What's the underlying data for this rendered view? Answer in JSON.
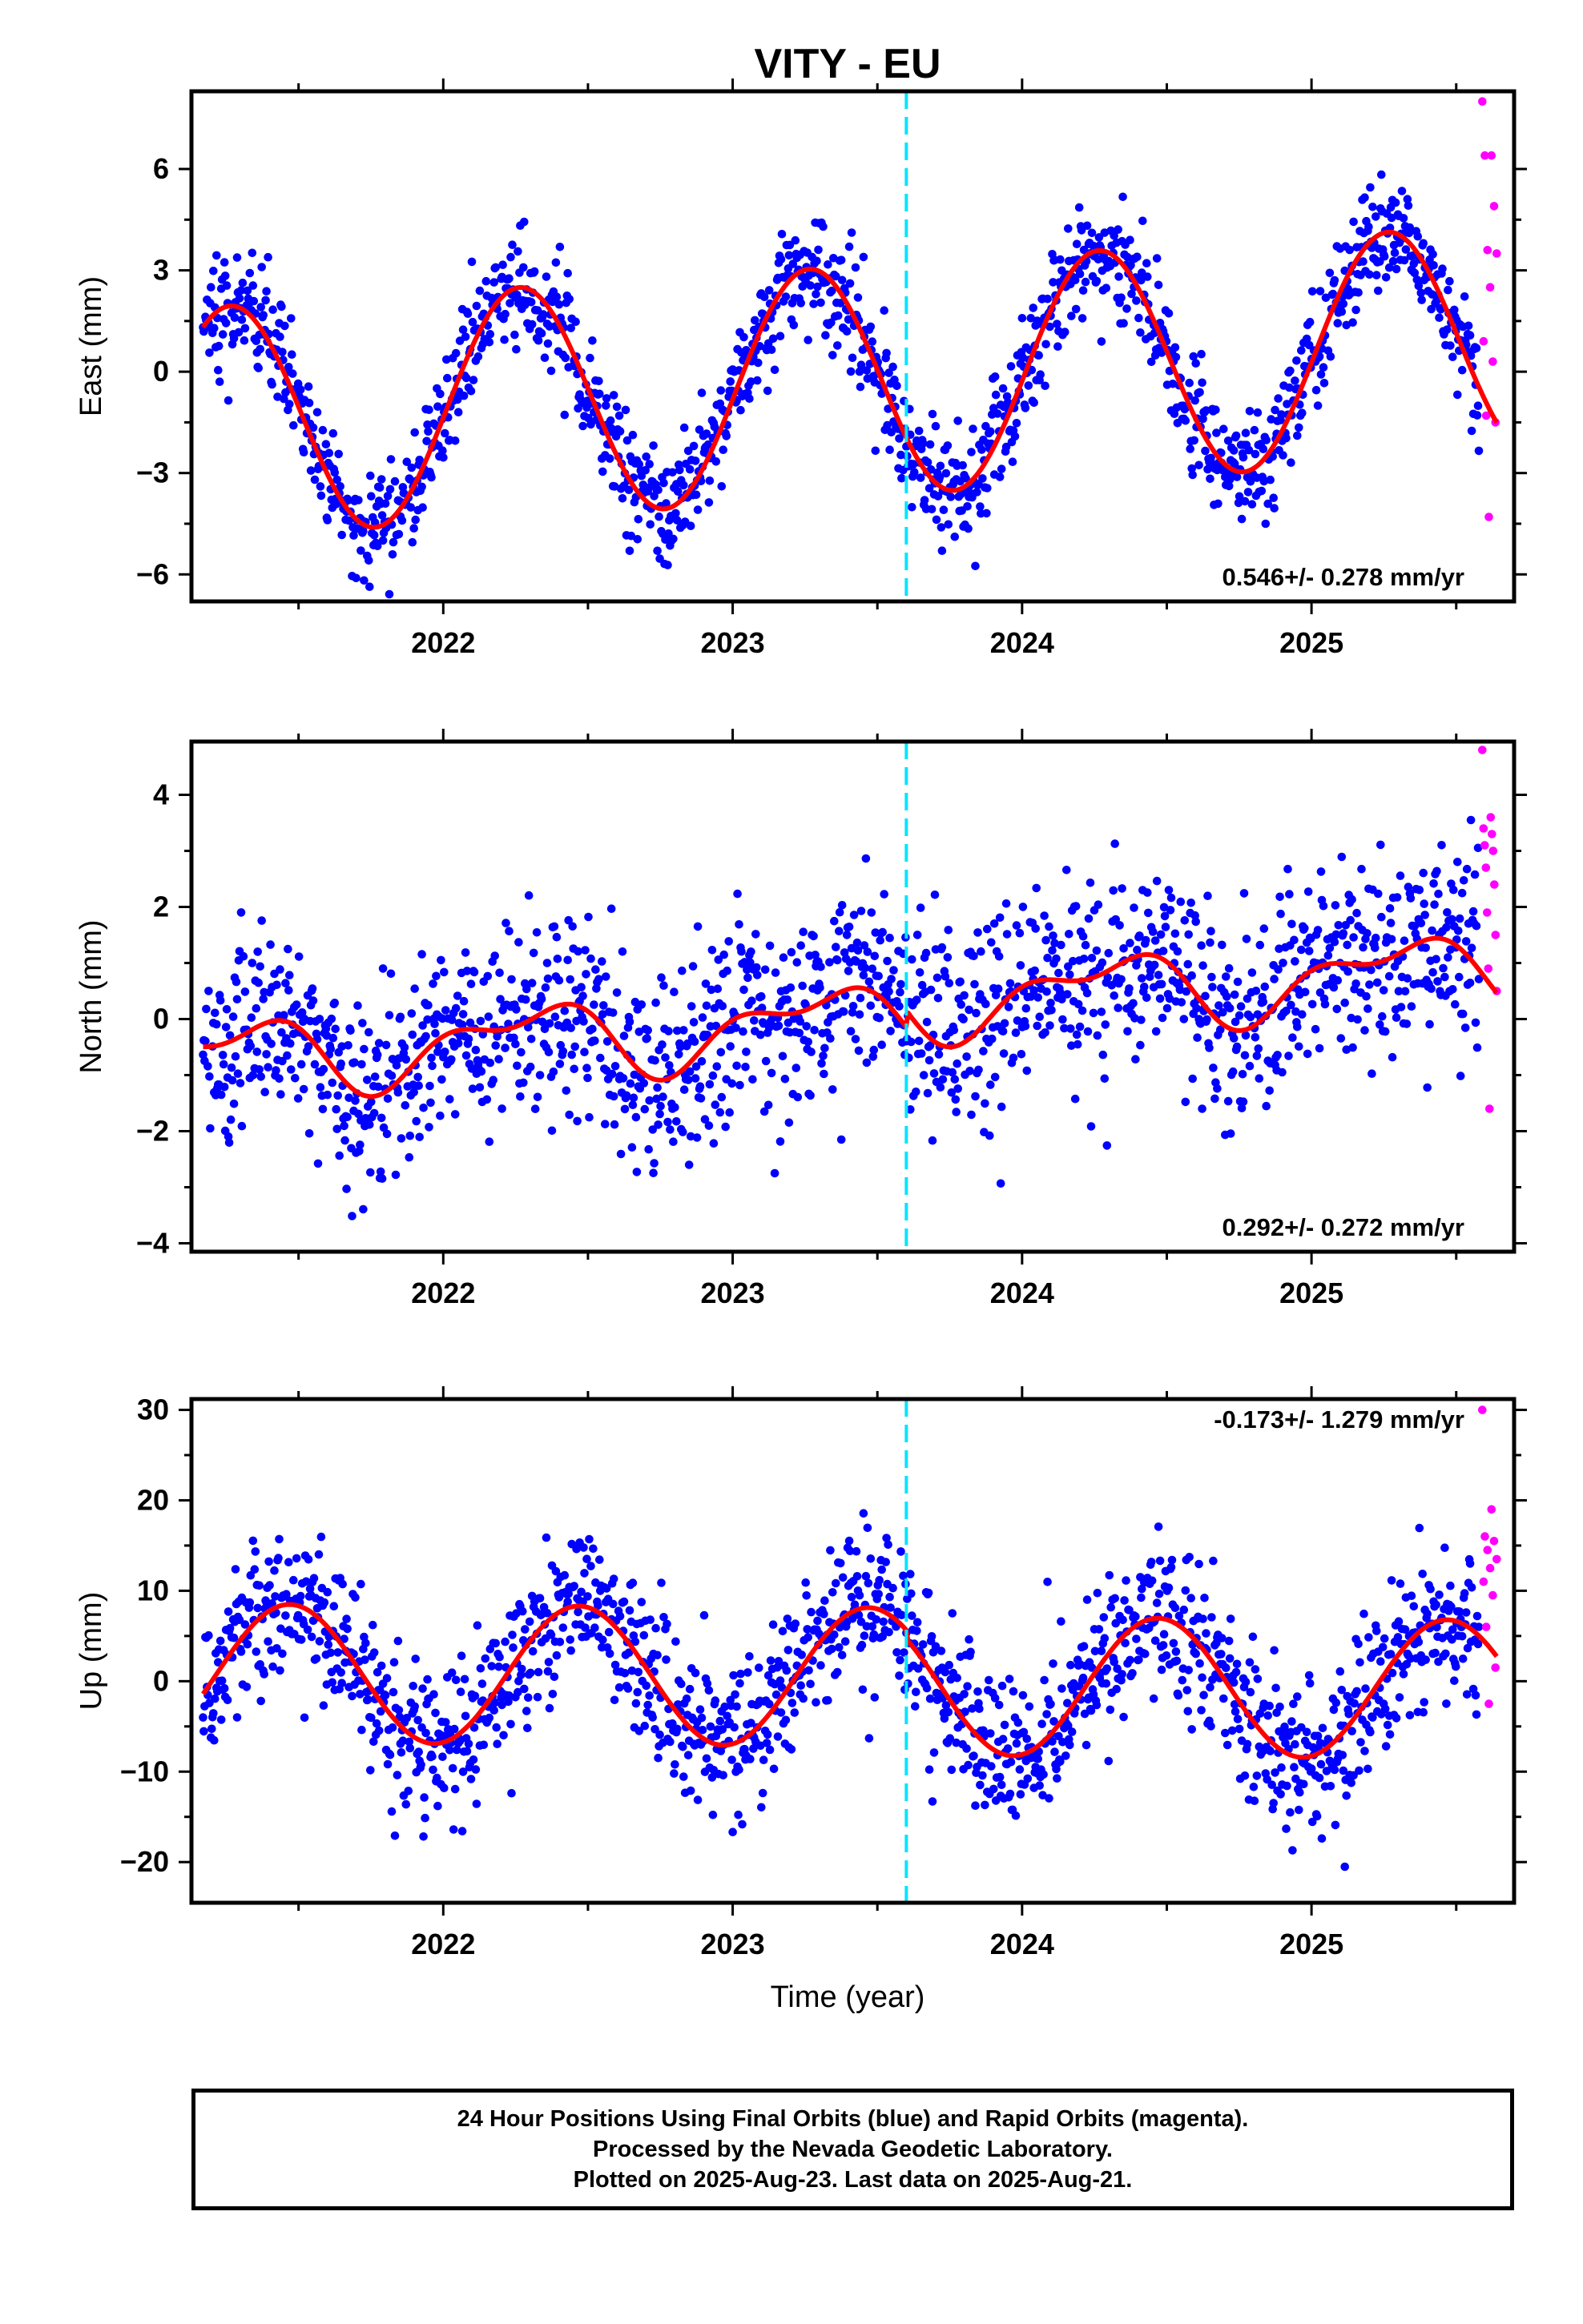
{
  "title": "VITY - EU",
  "xlabel": "Time (year)",
  "footer": {
    "line1": "24 Hour Positions Using Final Orbits (blue) and Rapid Orbits (magenta).",
    "line2": "Processed by the Nevada Geodetic Laboratory.",
    "line3": "Plotted on 2025-Aug-23. Last data on 2025-Aug-21."
  },
  "colors": {
    "final_orbits": "#0000ff",
    "rapid_orbits": "#ff00ff",
    "model_fit": "#ff0000",
    "equipment_change": "#00e5ff",
    "axes": "#000000"
  },
  "chart_data": [
    {
      "type": "scatter",
      "panel": "east",
      "ylabel": "East (mm)",
      "xlim": [
        2021.13,
        2025.7
      ],
      "ylim": [
        -6.8,
        8.3
      ],
      "xticks": [
        2022,
        2023,
        2024,
        2025
      ],
      "yticks": [
        -6,
        -3,
        0,
        3,
        6
      ],
      "ytick_labels": [
        "−6",
        "−3",
        "0",
        "3",
        "6"
      ],
      "velocity_label": "0.546+/- 0.278 mm/yr",
      "discontinuity_x": 2023.6,
      "fit": {
        "rate": 0.546,
        "offset": -0.3,
        "mean_time": 2023.4,
        "sin_amp": 3.4,
        "cos_amp": -0.3,
        "sin2_amp": 0.0,
        "cos2_amp": 0.0,
        "step_at": 2023.6,
        "step": 0.0
      },
      "scatter_sigma": 0.85,
      "final_range": [
        2021.17,
        2025.58
      ],
      "rapid_range": [
        2025.59,
        2025.64
      ],
      "rapid_values": [
        8.0,
        6.4,
        6.4,
        4.9,
        3.6,
        3.5,
        2.5,
        0.9,
        0.3,
        -1.3,
        -1.5,
        -4.3
      ]
    },
    {
      "type": "scatter",
      "panel": "north",
      "ylabel": "North (mm)",
      "xlim": [
        2021.13,
        2025.7
      ],
      "ylim": [
        -4.15,
        4.95
      ],
      "xticks": [
        2022,
        2023,
        2024,
        2025
      ],
      "yticks": [
        -4,
        -2,
        0,
        2,
        4
      ],
      "ytick_labels": [
        "−4",
        "−2",
        "0",
        "2",
        "4"
      ],
      "velocity_label": "0.292+/- 0.272 mm/yr",
      "discontinuity_x": 2023.6,
      "fit": {
        "rate": 0.292,
        "offset": -0.05,
        "mean_time": 2023.4,
        "sin_amp": 0.55,
        "cos_amp": -0.15,
        "sin2_amp": -0.05,
        "cos2_amp": 0.3,
        "step_at": 2023.6,
        "step": 0.3
      },
      "scatter_sigma": 0.9,
      "final_range": [
        2021.17,
        2025.58
      ],
      "rapid_range": [
        2025.59,
        2025.64
      ],
      "rapid_values": [
        4.8,
        3.6,
        3.4,
        3.3,
        3.1,
        3.0,
        2.7,
        2.4,
        1.9,
        1.5,
        0.9,
        0.5,
        -1.6
      ]
    },
    {
      "type": "scatter",
      "panel": "up",
      "ylabel": "Up (mm)",
      "xlim": [
        2021.13,
        2025.7
      ],
      "ylim": [
        -24.5,
        31.2
      ],
      "xticks": [
        2022,
        2023,
        2024,
        2025
      ],
      "yticks": [
        -20,
        -10,
        0,
        10,
        20,
        30
      ],
      "ytick_labels": [
        "−20",
        "−10",
        "0",
        "10",
        "20",
        "30"
      ],
      "velocity_label": "-0.173+/- 1.279 mm/yr",
      "discontinuity_x": 2023.6,
      "fit": {
        "rate": -0.173,
        "offset": 0.5,
        "mean_time": 2023.4,
        "sin_amp": 1.5,
        "cos_amp": -7.5,
        "sin2_amp": 0.0,
        "cos2_amp": 0.0,
        "step_at": 2023.6,
        "step": -1.0
      },
      "scatter_sigma": 4.2,
      "final_range": [
        2021.17,
        2025.58
      ],
      "rapid_range": [
        2025.59,
        2025.64
      ],
      "rapid_values": [
        30.0,
        19.0,
        16.0,
        15.5,
        14.5,
        13.5,
        12.5,
        11.0,
        9.5,
        6.0,
        1.5,
        -2.5
      ]
    }
  ]
}
